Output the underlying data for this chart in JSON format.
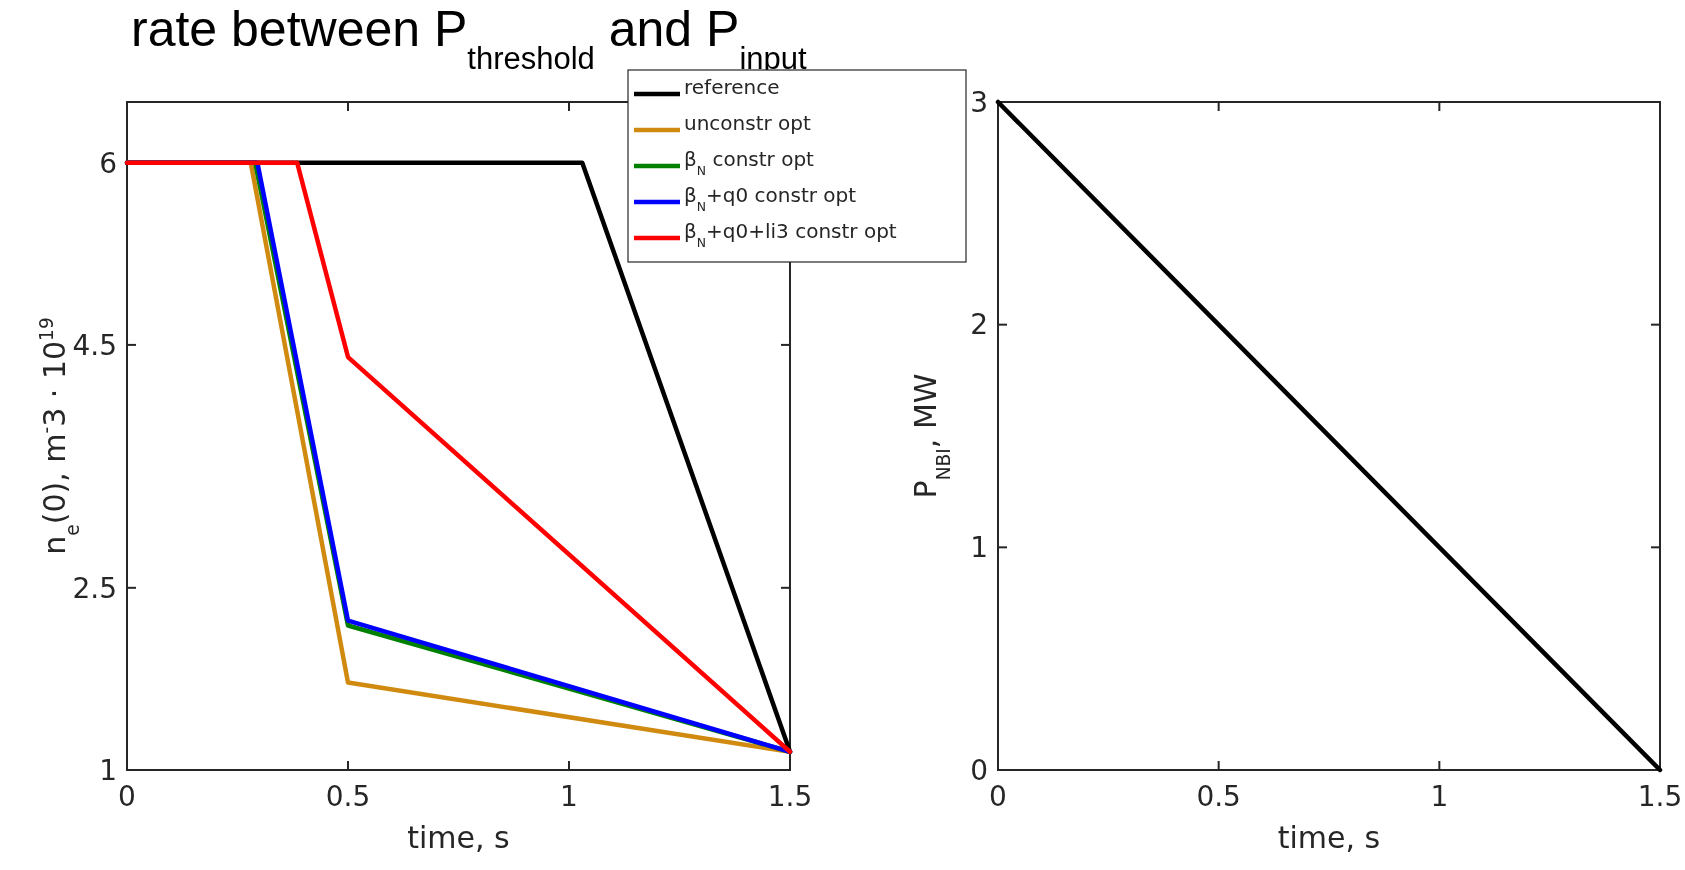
{
  "chart_data": [
    {
      "type": "line",
      "title": "rate between P$_{threshold}$ and P$_{input}$",
      "xlabel": "time, s",
      "ylabel": "n$_{e}$(0), m$^{-}$3 · 10$^{19}$",
      "xlim": [
        0,
        1.5
      ],
      "ylim": [
        1,
        6.5
      ],
      "xticks": [
        0,
        0.5,
        1,
        1.5
      ],
      "yticks": [
        1,
        2.5,
        4.5,
        6
      ],
      "grid": false,
      "legend": "top right",
      "series": [
        {
          "name": "reference",
          "color": "#000000",
          "x": [
            0,
            1.03,
            1.5
          ],
          "values": [
            6,
            6,
            1.15
          ]
        },
        {
          "name": "unconstr opt",
          "color": "#d08a10",
          "x": [
            0,
            0.28,
            0.5,
            1.5
          ],
          "values": [
            6,
            6,
            1.72,
            1.15
          ]
        },
        {
          "name": "β$_{N}$ constr opt",
          "color": "#008000",
          "x": [
            0,
            0.29,
            0.5,
            1.5
          ],
          "values": [
            6,
            6,
            2.19,
            1.15
          ]
        },
        {
          "name": "β$_{N}$+q0 constr opt",
          "color": "#0000ff",
          "x": [
            0,
            0.295,
            0.5,
            1.5
          ],
          "values": [
            6,
            6,
            2.23,
            1.15
          ]
        },
        {
          "name": "β$_{N}$+q0+li3 constr opt",
          "color": "#ff0000",
          "x": [
            0,
            0.385,
            0.5,
            1.5
          ],
          "values": [
            6,
            6,
            4.4,
            1.15
          ]
        }
      ]
    },
    {
      "type": "line",
      "xlabel": "time, s",
      "ylabel": "P$_{NBI}$, MW",
      "xlim": [
        0,
        1.5
      ],
      "ylim": [
        0,
        3
      ],
      "xticks": [
        0,
        0.5,
        1,
        1.5
      ],
      "yticks": [
        0,
        1,
        2,
        3
      ],
      "grid": false,
      "series": [
        {
          "color": "#000000",
          "x": [
            0,
            1.5
          ],
          "values": [
            3,
            0
          ]
        }
      ]
    }
  ]
}
